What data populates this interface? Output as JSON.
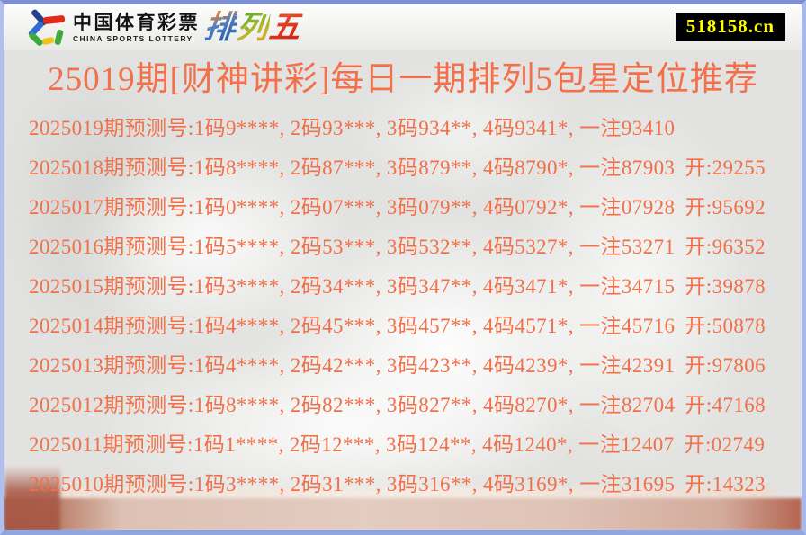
{
  "header": {
    "logo": {
      "cn": "中国体育彩票",
      "en": "CHINA SPORTS LOTTERY",
      "brand_chars": [
        "排",
        "列",
        "五"
      ]
    },
    "badge": "518158.cn"
  },
  "title": "25019期[财神讲彩]每日一期排列5包星定位推荐",
  "colors": {
    "text_orange": "#f1704a",
    "badge_bg": "#000000",
    "badge_text": "#ffff00",
    "frame_blue": "#8fa5e0",
    "pedestal_pink": "#e3ccc0",
    "pedestal_red": "#a65947"
  },
  "rows": [
    {
      "main": "2025019期预测号:1码9****, 2码93***, 3码934**, 4码9341*, 一注93410",
      "draw": ""
    },
    {
      "main": "2025018期预测号:1码8****, 2码87***, 3码879**, 4码8790*, 一注87903",
      "draw": "开:29255"
    },
    {
      "main": "2025017期预测号:1码0****, 2码07***, 3码079**, 4码0792*, 一注07928",
      "draw": "开:95692"
    },
    {
      "main": "2025016期预测号:1码5****, 2码53***, 3码532**, 4码5327*, 一注53271",
      "draw": "开:96352"
    },
    {
      "main": "2025015期预测号:1码3****, 2码34***, 3码347**, 4码3471*, 一注34715",
      "draw": "开:39878"
    },
    {
      "main": "2025014期预测号:1码4****, 2码45***, 3码457**, 4码4571*, 一注45716",
      "draw": "开:50878"
    },
    {
      "main": "2025013期预测号:1码4****, 2码42***, 3码423**, 4码4239*, 一注42391",
      "draw": "开:97806"
    },
    {
      "main": "2025012期预测号:1码8****, 2码82***, 3码827**, 4码8270*, 一注82704",
      "draw": "开:47168"
    },
    {
      "main": "2025011期预测号:1码1****, 2码12***, 3码124**, 4码1240*, 一注12407",
      "draw": "开:02749"
    },
    {
      "main": "2025010期预测号:1码3****, 2码31***, 3码316**, 4码3169*, 一注31695",
      "draw": "开:14323"
    }
  ]
}
